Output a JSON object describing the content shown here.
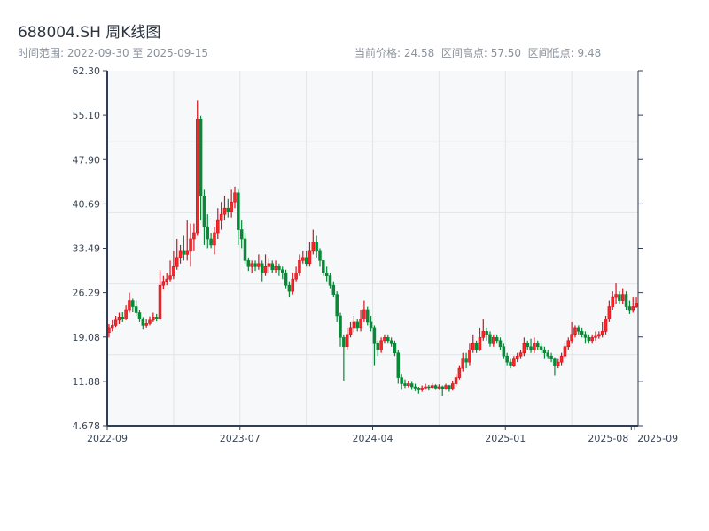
{
  "header": {
    "title": "688004.SH 周K线图",
    "range_text": "时间范围: 2022-09-30 至 2025-09-15",
    "stats_text": "当前价格: 24.58  区间高点: 57.50  区间低点: 9.48"
  },
  "colors": {
    "up": "#d9101c",
    "down": "#078a36",
    "plot_bg": "#f6f8fa",
    "grid": "#e1e5ea",
    "axis": "#2f3e52"
  },
  "chart_data": {
    "type": "candlestick",
    "title": "688004.SH 周K线图",
    "current_price": 24.58,
    "range_high": 57.5,
    "range_low": 9.48,
    "ylim": [
      4.678,
      62.3
    ],
    "y_ticks": [
      "4.678",
      "11.88",
      "19.08",
      "26.29",
      "33.49",
      "40.69",
      "47.90",
      "55.10",
      "62.30"
    ],
    "x_ticks": [
      {
        "index": 0,
        "label": "2022-09"
      },
      {
        "index": 39,
        "label": "2023-07"
      },
      {
        "index": 78,
        "label": "2024-04"
      },
      {
        "index": 117,
        "label": "2025-01"
      },
      {
        "index": 154,
        "label": "2025-08"
      },
      {
        "index": 155,
        "label": "2025-09"
      }
    ],
    "ohlc_format": [
      "open",
      "high",
      "low",
      "close"
    ],
    "candles": [
      [
        19.8,
        21.2,
        19.0,
        20.5
      ],
      [
        20.5,
        21.8,
        20.0,
        21.0
      ],
      [
        21.0,
        22.5,
        20.6,
        21.8
      ],
      [
        21.8,
        23.0,
        21.2,
        22.3
      ],
      [
        22.3,
        23.2,
        21.5,
        22.0
      ],
      [
        22.0,
        24.2,
        21.8,
        23.5
      ],
      [
        23.5,
        26.3,
        23.0,
        25.0
      ],
      [
        25.0,
        25.3,
        23.2,
        24.0
      ],
      [
        24.0,
        25.0,
        22.5,
        23.0
      ],
      [
        23.0,
        23.5,
        21.5,
        22.0
      ],
      [
        22.0,
        22.3,
        20.3,
        21.0
      ],
      [
        21.0,
        22.0,
        20.5,
        21.3
      ],
      [
        21.3,
        22.4,
        21.0,
        21.8
      ],
      [
        21.8,
        23.0,
        21.5,
        22.3
      ],
      [
        22.3,
        22.8,
        21.6,
        22.0
      ],
      [
        22.0,
        30.0,
        21.8,
        27.5
      ],
      [
        27.5,
        29.0,
        26.8,
        28.0
      ],
      [
        28.0,
        29.5,
        27.5,
        28.5
      ],
      [
        28.5,
        31.5,
        28.0,
        29.0
      ],
      [
        29.0,
        33.0,
        28.5,
        30.5
      ],
      [
        30.5,
        35.0,
        30.0,
        32.0
      ],
      [
        32.0,
        34.0,
        31.0,
        33.0
      ],
      [
        33.0,
        35.5,
        31.5,
        32.5
      ],
      [
        32.5,
        38.0,
        31.5,
        33.0
      ],
      [
        33.0,
        37.5,
        30.5,
        35.0
      ],
      [
        35.0,
        37.5,
        33.0,
        36.0
      ],
      [
        36.0,
        57.5,
        35.5,
        54.5
      ],
      [
        54.5,
        55.0,
        38.0,
        42.0
      ],
      [
        42.0,
        43.0,
        34.0,
        37.0
      ],
      [
        37.0,
        39.0,
        33.5,
        35.0
      ],
      [
        35.0,
        36.0,
        33.5,
        34.0
      ],
      [
        34.0,
        37.0,
        32.5,
        36.0
      ],
      [
        36.0,
        40.0,
        35.0,
        38.0
      ],
      [
        38.0,
        41.0,
        36.5,
        39.0
      ],
      [
        39.0,
        42.0,
        38.0,
        40.0
      ],
      [
        40.0,
        41.5,
        38.5,
        39.5
      ],
      [
        39.5,
        43.0,
        38.5,
        41.0
      ],
      [
        41.0,
        43.5,
        40.0,
        42.5
      ],
      [
        42.5,
        43.0,
        34.0,
        36.5
      ],
      [
        36.5,
        38.0,
        33.5,
        35.0
      ],
      [
        35.0,
        36.0,
        31.0,
        31.5
      ],
      [
        31.5,
        32.0,
        29.8,
        30.5
      ],
      [
        30.5,
        31.5,
        29.5,
        31.0
      ],
      [
        31.0,
        31.5,
        29.8,
        30.5
      ],
      [
        30.5,
        32.5,
        30.0,
        31.0
      ],
      [
        31.0,
        31.5,
        28.0,
        29.5
      ],
      [
        29.5,
        32.5,
        29.0,
        30.5
      ],
      [
        30.5,
        31.8,
        29.5,
        31.0
      ],
      [
        31.0,
        31.5,
        29.5,
        30.0
      ],
      [
        30.0,
        31.5,
        29.5,
        30.5
      ],
      [
        30.5,
        31.0,
        29.0,
        30.0
      ],
      [
        30.0,
        30.5,
        28.5,
        29.5
      ],
      [
        29.5,
        30.0,
        27.0,
        27.5
      ],
      [
        27.5,
        28.0,
        25.5,
        26.5
      ],
      [
        26.5,
        29.5,
        26.0,
        28.5
      ],
      [
        28.5,
        30.5,
        28.0,
        29.5
      ],
      [
        29.5,
        32.5,
        29.0,
        31.5
      ],
      [
        31.5,
        33.0,
        31.0,
        32.0
      ],
      [
        32.0,
        33.0,
        30.5,
        31.0
      ],
      [
        31.0,
        34.5,
        30.5,
        33.0
      ],
      [
        33.0,
        36.5,
        32.5,
        34.5
      ],
      [
        34.5,
        35.5,
        32.0,
        33.0
      ],
      [
        33.0,
        33.5,
        30.5,
        31.5
      ],
      [
        31.5,
        31.5,
        29.0,
        29.5
      ],
      [
        29.5,
        30.5,
        28.0,
        29.0
      ],
      [
        29.0,
        29.5,
        27.0,
        27.5
      ],
      [
        27.5,
        28.0,
        25.5,
        26.0
      ],
      [
        26.0,
        26.5,
        21.5,
        22.5
      ],
      [
        22.5,
        23.0,
        17.5,
        19.0
      ],
      [
        19.0,
        19.5,
        12.0,
        17.5
      ],
      [
        17.5,
        20.5,
        17.0,
        19.5
      ],
      [
        19.5,
        21.5,
        19.0,
        20.5
      ],
      [
        20.5,
        22.5,
        19.8,
        21.5
      ],
      [
        21.5,
        22.0,
        20.0,
        20.5
      ],
      [
        20.5,
        23.5,
        20.0,
        22.0
      ],
      [
        22.0,
        25.0,
        21.5,
        23.5
      ],
      [
        23.5,
        24.0,
        21.0,
        21.5
      ],
      [
        21.5,
        22.5,
        20.0,
        20.5
      ],
      [
        20.5,
        21.0,
        14.5,
        18.0
      ],
      [
        18.0,
        18.5,
        16.0,
        17.0
      ],
      [
        17.0,
        19.0,
        16.5,
        18.5
      ],
      [
        18.5,
        19.5,
        18.0,
        19.0
      ],
      [
        19.0,
        19.5,
        18.0,
        18.5
      ],
      [
        18.5,
        19.0,
        17.5,
        18.0
      ],
      [
        18.0,
        18.5,
        16.0,
        16.5
      ],
      [
        16.5,
        17.0,
        11.5,
        12.5
      ],
      [
        12.5,
        13.0,
        10.5,
        11.5
      ],
      [
        11.5,
        12.2,
        10.8,
        11.2
      ],
      [
        11.2,
        12.0,
        10.9,
        11.5
      ],
      [
        11.5,
        11.8,
        10.5,
        11.0
      ],
      [
        11.0,
        11.5,
        10.3,
        10.8
      ],
      [
        10.8,
        11.0,
        9.9,
        10.5
      ],
      [
        10.5,
        11.2,
        10.2,
        10.8
      ],
      [
        10.8,
        11.5,
        10.5,
        11.0
      ],
      [
        11.0,
        11.3,
        10.4,
        10.9
      ],
      [
        10.9,
        11.6,
        10.6,
        11.2
      ],
      [
        11.2,
        11.4,
        10.5,
        10.8
      ],
      [
        10.8,
        11.4,
        10.5,
        11.0
      ],
      [
        11.0,
        11.2,
        9.48,
        10.7
      ],
      [
        10.7,
        11.5,
        10.5,
        11.2
      ],
      [
        11.2,
        11.3,
        10.2,
        10.6
      ],
      [
        10.6,
        12.0,
        10.4,
        11.5
      ],
      [
        11.5,
        13.0,
        11.2,
        12.5
      ],
      [
        12.5,
        14.5,
        12.2,
        14.0
      ],
      [
        14.0,
        16.5,
        13.5,
        15.5
      ],
      [
        15.5,
        16.5,
        14.0,
        15.0
      ],
      [
        15.0,
        18.0,
        14.5,
        17.0
      ],
      [
        17.0,
        19.5,
        16.5,
        18.0
      ],
      [
        18.0,
        18.5,
        16.5,
        17.0
      ],
      [
        17.0,
        20.5,
        16.8,
        19.0
      ],
      [
        19.0,
        22.0,
        18.5,
        20.0
      ],
      [
        20.0,
        20.5,
        18.5,
        19.5
      ],
      [
        19.5,
        20.0,
        17.5,
        18.0
      ],
      [
        18.0,
        19.5,
        17.5,
        19.0
      ],
      [
        19.0,
        19.5,
        18.0,
        18.5
      ],
      [
        18.5,
        19.0,
        17.0,
        17.5
      ],
      [
        17.5,
        18.0,
        15.5,
        16.0
      ],
      [
        16.0,
        16.5,
        14.5,
        15.0
      ],
      [
        15.0,
        15.5,
        14.0,
        14.5
      ],
      [
        14.5,
        16.0,
        14.2,
        15.5
      ],
      [
        15.5,
        16.5,
        15.0,
        16.0
      ],
      [
        16.0,
        17.0,
        15.5,
        16.5
      ],
      [
        16.5,
        19.0,
        16.0,
        18.0
      ],
      [
        18.0,
        18.5,
        17.0,
        17.5
      ],
      [
        17.5,
        18.8,
        16.5,
        17.0
      ],
      [
        17.0,
        19.0,
        16.5,
        18.0
      ],
      [
        18.0,
        18.5,
        17.0,
        17.5
      ],
      [
        17.5,
        18.0,
        16.5,
        17.0
      ],
      [
        17.0,
        17.5,
        15.5,
        16.5
      ],
      [
        16.5,
        17.0,
        15.5,
        16.0
      ],
      [
        16.0,
        16.5,
        15.0,
        15.5
      ],
      [
        15.5,
        15.8,
        12.8,
        14.5
      ],
      [
        14.5,
        15.5,
        14.0,
        15.0
      ],
      [
        15.0,
        16.5,
        14.5,
        16.0
      ],
      [
        16.0,
        18.0,
        15.5,
        17.5
      ],
      [
        17.5,
        19.0,
        17.0,
        18.5
      ],
      [
        18.5,
        21.5,
        18.0,
        19.5
      ],
      [
        19.5,
        21.0,
        19.0,
        20.5
      ],
      [
        20.5,
        21.0,
        19.5,
        20.0
      ],
      [
        20.0,
        20.5,
        19.0,
        19.5
      ],
      [
        19.5,
        20.0,
        18.0,
        19.0
      ],
      [
        19.0,
        19.5,
        18.0,
        18.5
      ],
      [
        18.5,
        19.5,
        18.0,
        19.0
      ],
      [
        19.0,
        20.0,
        18.5,
        19.2
      ],
      [
        19.2,
        20.0,
        18.8,
        19.5
      ],
      [
        19.5,
        21.5,
        19.0,
        20.0
      ],
      [
        20.0,
        22.5,
        19.5,
        22.0
      ],
      [
        22.0,
        25.0,
        21.5,
        24.0
      ],
      [
        24.0,
        26.5,
        23.5,
        25.5
      ],
      [
        25.5,
        27.8,
        24.5,
        26.0
      ],
      [
        26.0,
        26.5,
        24.5,
        25.0
      ],
      [
        25.0,
        27.0,
        24.5,
        26.0
      ],
      [
        26.0,
        26.5,
        23.5,
        24.0
      ],
      [
        24.0,
        25.0,
        22.8,
        23.5
      ],
      [
        23.5,
        25.5,
        23.0,
        24.0
      ],
      [
        24.0,
        25.5,
        23.8,
        24.58
      ]
    ]
  }
}
